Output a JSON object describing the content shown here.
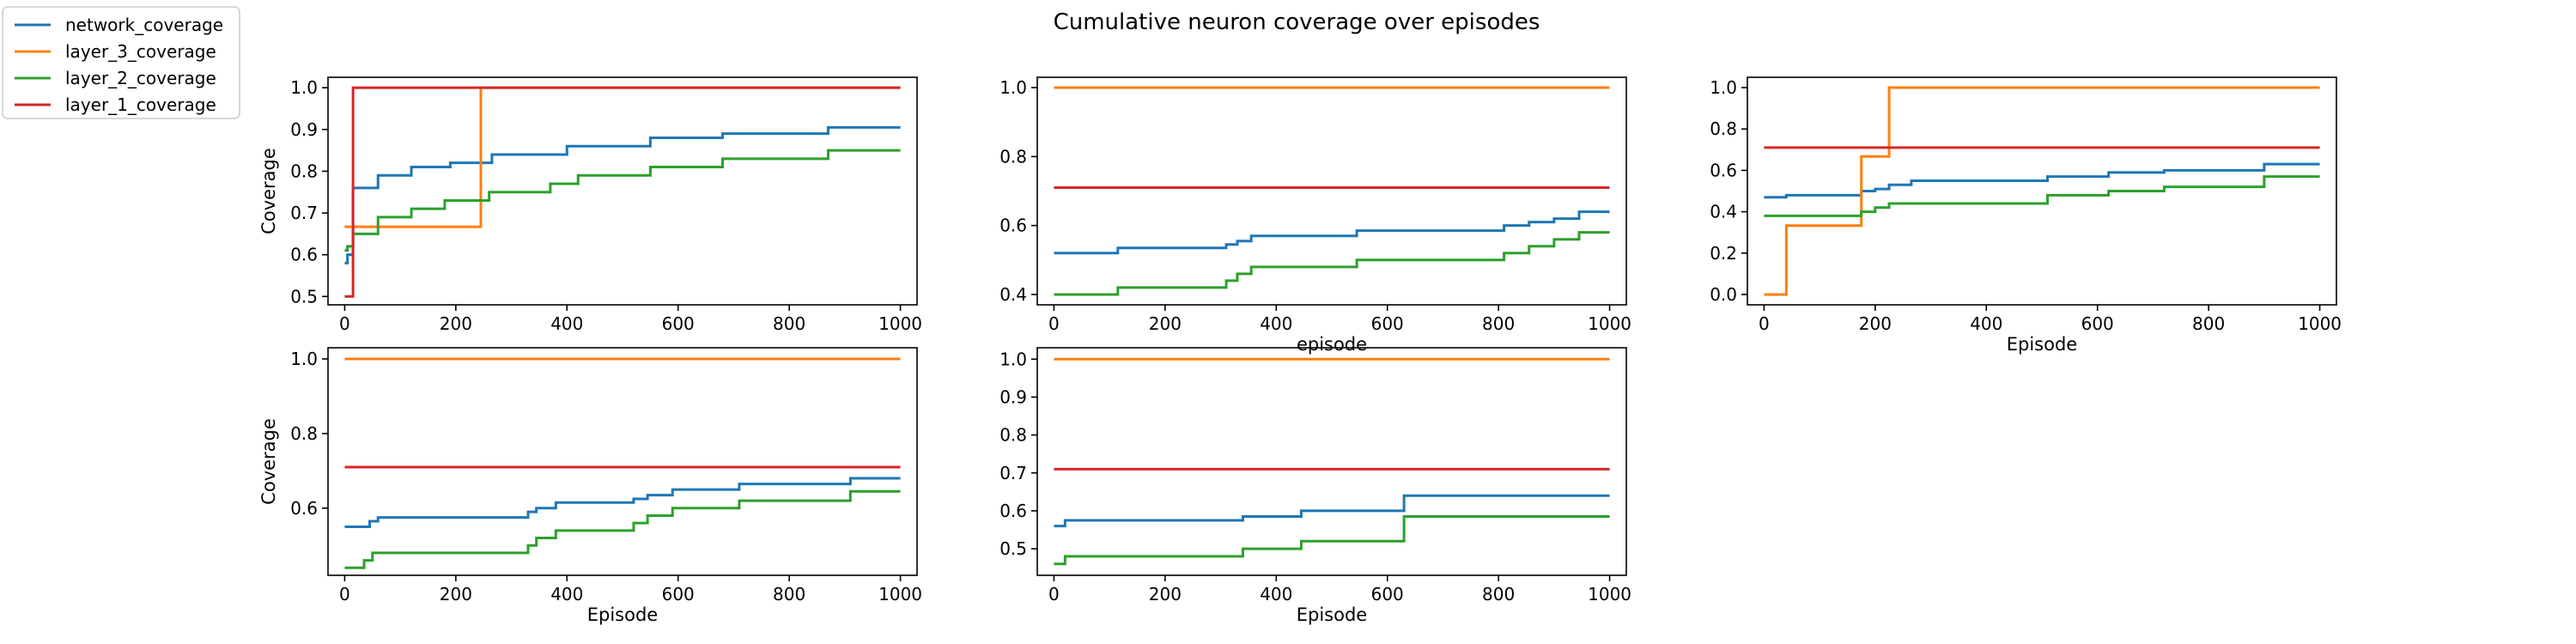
{
  "figure": {
    "title": "Cumulative neuron coverage over episodes"
  },
  "legend": {
    "placement": "top-left",
    "entries": [
      {
        "key": "network_coverage",
        "label": "network_coverage",
        "color": "#1f77b4"
      },
      {
        "key": "layer_3_coverage",
        "label": "layer_3_coverage",
        "color": "#ff7f0e"
      },
      {
        "key": "layer_2_coverage",
        "label": "layer_2_coverage",
        "color": "#2ca02c"
      },
      {
        "key": "layer_1_coverage",
        "label": "layer_1_coverage",
        "color": "#d62728"
      }
    ]
  },
  "chart_data": [
    {
      "type": "line",
      "xlabel": "",
      "ylabel": "Coverage",
      "xlim": [
        -30,
        1030
      ],
      "ylim": [
        0.48,
        1.025
      ],
      "xticks": [
        0,
        200,
        400,
        600,
        800,
        1000
      ],
      "yticks": [
        0.5,
        0.6,
        0.7,
        0.8,
        0.9,
        1.0
      ],
      "series": [
        {
          "name": "network_coverage",
          "step": true,
          "x": [
            0,
            5,
            15,
            60,
            120,
            190,
            245,
            265,
            400,
            550,
            680,
            870,
            1000
          ],
          "y": [
            0.58,
            0.6,
            0.76,
            0.79,
            0.81,
            0.82,
            0.82,
            0.84,
            0.86,
            0.88,
            0.89,
            0.905,
            0.905
          ]
        },
        {
          "name": "layer_3_coverage",
          "step": true,
          "x": [
            0,
            10,
            245,
            1000
          ],
          "y": [
            0.667,
            0.667,
            1.0,
            1.0
          ]
        },
        {
          "name": "layer_2_coverage",
          "step": true,
          "x": [
            0,
            5,
            15,
            60,
            120,
            180,
            260,
            370,
            420,
            550,
            680,
            870,
            1000
          ],
          "y": [
            0.61,
            0.62,
            0.65,
            0.69,
            0.71,
            0.73,
            0.75,
            0.77,
            0.79,
            0.81,
            0.83,
            0.85,
            0.85
          ]
        },
        {
          "name": "layer_1_coverage",
          "step": true,
          "x": [
            0,
            5,
            15,
            1000
          ],
          "y": [
            0.5,
            0.5,
            1.0,
            1.0
          ]
        }
      ]
    },
    {
      "type": "line",
      "xlabel": "episode",
      "ylabel": "",
      "xlim": [
        -30,
        1030
      ],
      "ylim": [
        0.37,
        1.03
      ],
      "xticks": [
        0,
        200,
        400,
        600,
        800,
        1000
      ],
      "yticks": [
        0.4,
        0.6,
        0.8,
        1.0
      ],
      "series": [
        {
          "name": "network_coverage",
          "step": true,
          "x": [
            0,
            115,
            310,
            330,
            355,
            545,
            810,
            855,
            900,
            945,
            1000
          ],
          "y": [
            0.52,
            0.535,
            0.545,
            0.555,
            0.57,
            0.585,
            0.6,
            0.61,
            0.62,
            0.64,
            0.64
          ]
        },
        {
          "name": "layer_3_coverage",
          "step": true,
          "x": [
            0,
            1000
          ],
          "y": [
            1.0,
            1.0
          ]
        },
        {
          "name": "layer_2_coverage",
          "step": true,
          "x": [
            0,
            115,
            310,
            330,
            355,
            545,
            810,
            855,
            900,
            945,
            1000
          ],
          "y": [
            0.4,
            0.42,
            0.44,
            0.46,
            0.48,
            0.5,
            0.52,
            0.54,
            0.56,
            0.58,
            0.58
          ]
        },
        {
          "name": "layer_1_coverage",
          "step": true,
          "x": [
            0,
            1000
          ],
          "y": [
            0.71,
            0.71
          ]
        }
      ]
    },
    {
      "type": "line",
      "xlabel": "Episode",
      "ylabel": "",
      "xlim": [
        -30,
        1030
      ],
      "ylim": [
        -0.05,
        1.05
      ],
      "xticks": [
        0,
        200,
        400,
        600,
        800,
        1000
      ],
      "yticks": [
        0.0,
        0.2,
        0.4,
        0.6,
        0.8,
        1.0
      ],
      "series": [
        {
          "name": "network_coverage",
          "step": true,
          "x": [
            0,
            40,
            175,
            200,
            225,
            265,
            510,
            620,
            720,
            900,
            1000
          ],
          "y": [
            0.47,
            0.48,
            0.5,
            0.51,
            0.53,
            0.55,
            0.57,
            0.59,
            0.6,
            0.63,
            0.63
          ]
        },
        {
          "name": "layer_3_coverage",
          "step": true,
          "x": [
            0,
            40,
            175,
            225,
            1000
          ],
          "y": [
            0.0,
            0.333,
            0.667,
            1.0,
            1.0
          ]
        },
        {
          "name": "layer_2_coverage",
          "step": true,
          "x": [
            0,
            175,
            200,
            225,
            265,
            510,
            620,
            720,
            900,
            1000
          ],
          "y": [
            0.38,
            0.4,
            0.42,
            0.44,
            0.44,
            0.48,
            0.5,
            0.52,
            0.57,
            0.57
          ]
        },
        {
          "name": "layer_1_coverage",
          "step": true,
          "x": [
            0,
            1000
          ],
          "y": [
            0.71,
            0.71
          ]
        }
      ]
    },
    {
      "type": "line",
      "xlabel": "Episode",
      "ylabel": "Coverage",
      "xlim": [
        -30,
        1030
      ],
      "ylim": [
        0.42,
        1.03
      ],
      "xticks": [
        0,
        200,
        400,
        600,
        800,
        1000
      ],
      "yticks": [
        0.6,
        0.8,
        1.0
      ],
      "series": [
        {
          "name": "network_coverage",
          "step": true,
          "x": [
            0,
            45,
            60,
            330,
            345,
            380,
            520,
            545,
            590,
            710,
            910,
            1000
          ],
          "y": [
            0.55,
            0.565,
            0.575,
            0.59,
            0.6,
            0.615,
            0.625,
            0.635,
            0.65,
            0.665,
            0.68,
            0.68
          ]
        },
        {
          "name": "layer_3_coverage",
          "step": true,
          "x": [
            0,
            1000
          ],
          "y": [
            1.0,
            1.0
          ]
        },
        {
          "name": "layer_2_coverage",
          "step": true,
          "x": [
            0,
            35,
            50,
            330,
            345,
            380,
            520,
            545,
            590,
            710,
            910,
            1000
          ],
          "y": [
            0.44,
            0.46,
            0.48,
            0.5,
            0.52,
            0.54,
            0.56,
            0.58,
            0.6,
            0.62,
            0.645,
            0.645
          ]
        },
        {
          "name": "layer_1_coverage",
          "step": true,
          "x": [
            0,
            1000
          ],
          "y": [
            0.71,
            0.71
          ]
        }
      ]
    },
    {
      "type": "line",
      "xlabel": "Episode",
      "ylabel": "",
      "xlim": [
        -30,
        1030
      ],
      "ylim": [
        0.43,
        1.03
      ],
      "xticks": [
        0,
        200,
        400,
        600,
        800,
        1000
      ],
      "yticks": [
        0.5,
        0.6,
        0.7,
        0.8,
        0.9,
        1.0
      ],
      "series": [
        {
          "name": "network_coverage",
          "step": true,
          "x": [
            0,
            20,
            340,
            445,
            630,
            1000
          ],
          "y": [
            0.56,
            0.575,
            0.585,
            0.6,
            0.64,
            0.64
          ]
        },
        {
          "name": "layer_3_coverage",
          "step": true,
          "x": [
            0,
            1000
          ],
          "y": [
            1.0,
            1.0
          ]
        },
        {
          "name": "layer_2_coverage",
          "step": true,
          "x": [
            0,
            20,
            340,
            445,
            630,
            1000
          ],
          "y": [
            0.46,
            0.48,
            0.5,
            0.52,
            0.585,
            0.585
          ]
        },
        {
          "name": "layer_1_coverage",
          "step": true,
          "x": [
            0,
            1000
          ],
          "y": [
            0.71,
            0.71
          ]
        }
      ]
    }
  ]
}
